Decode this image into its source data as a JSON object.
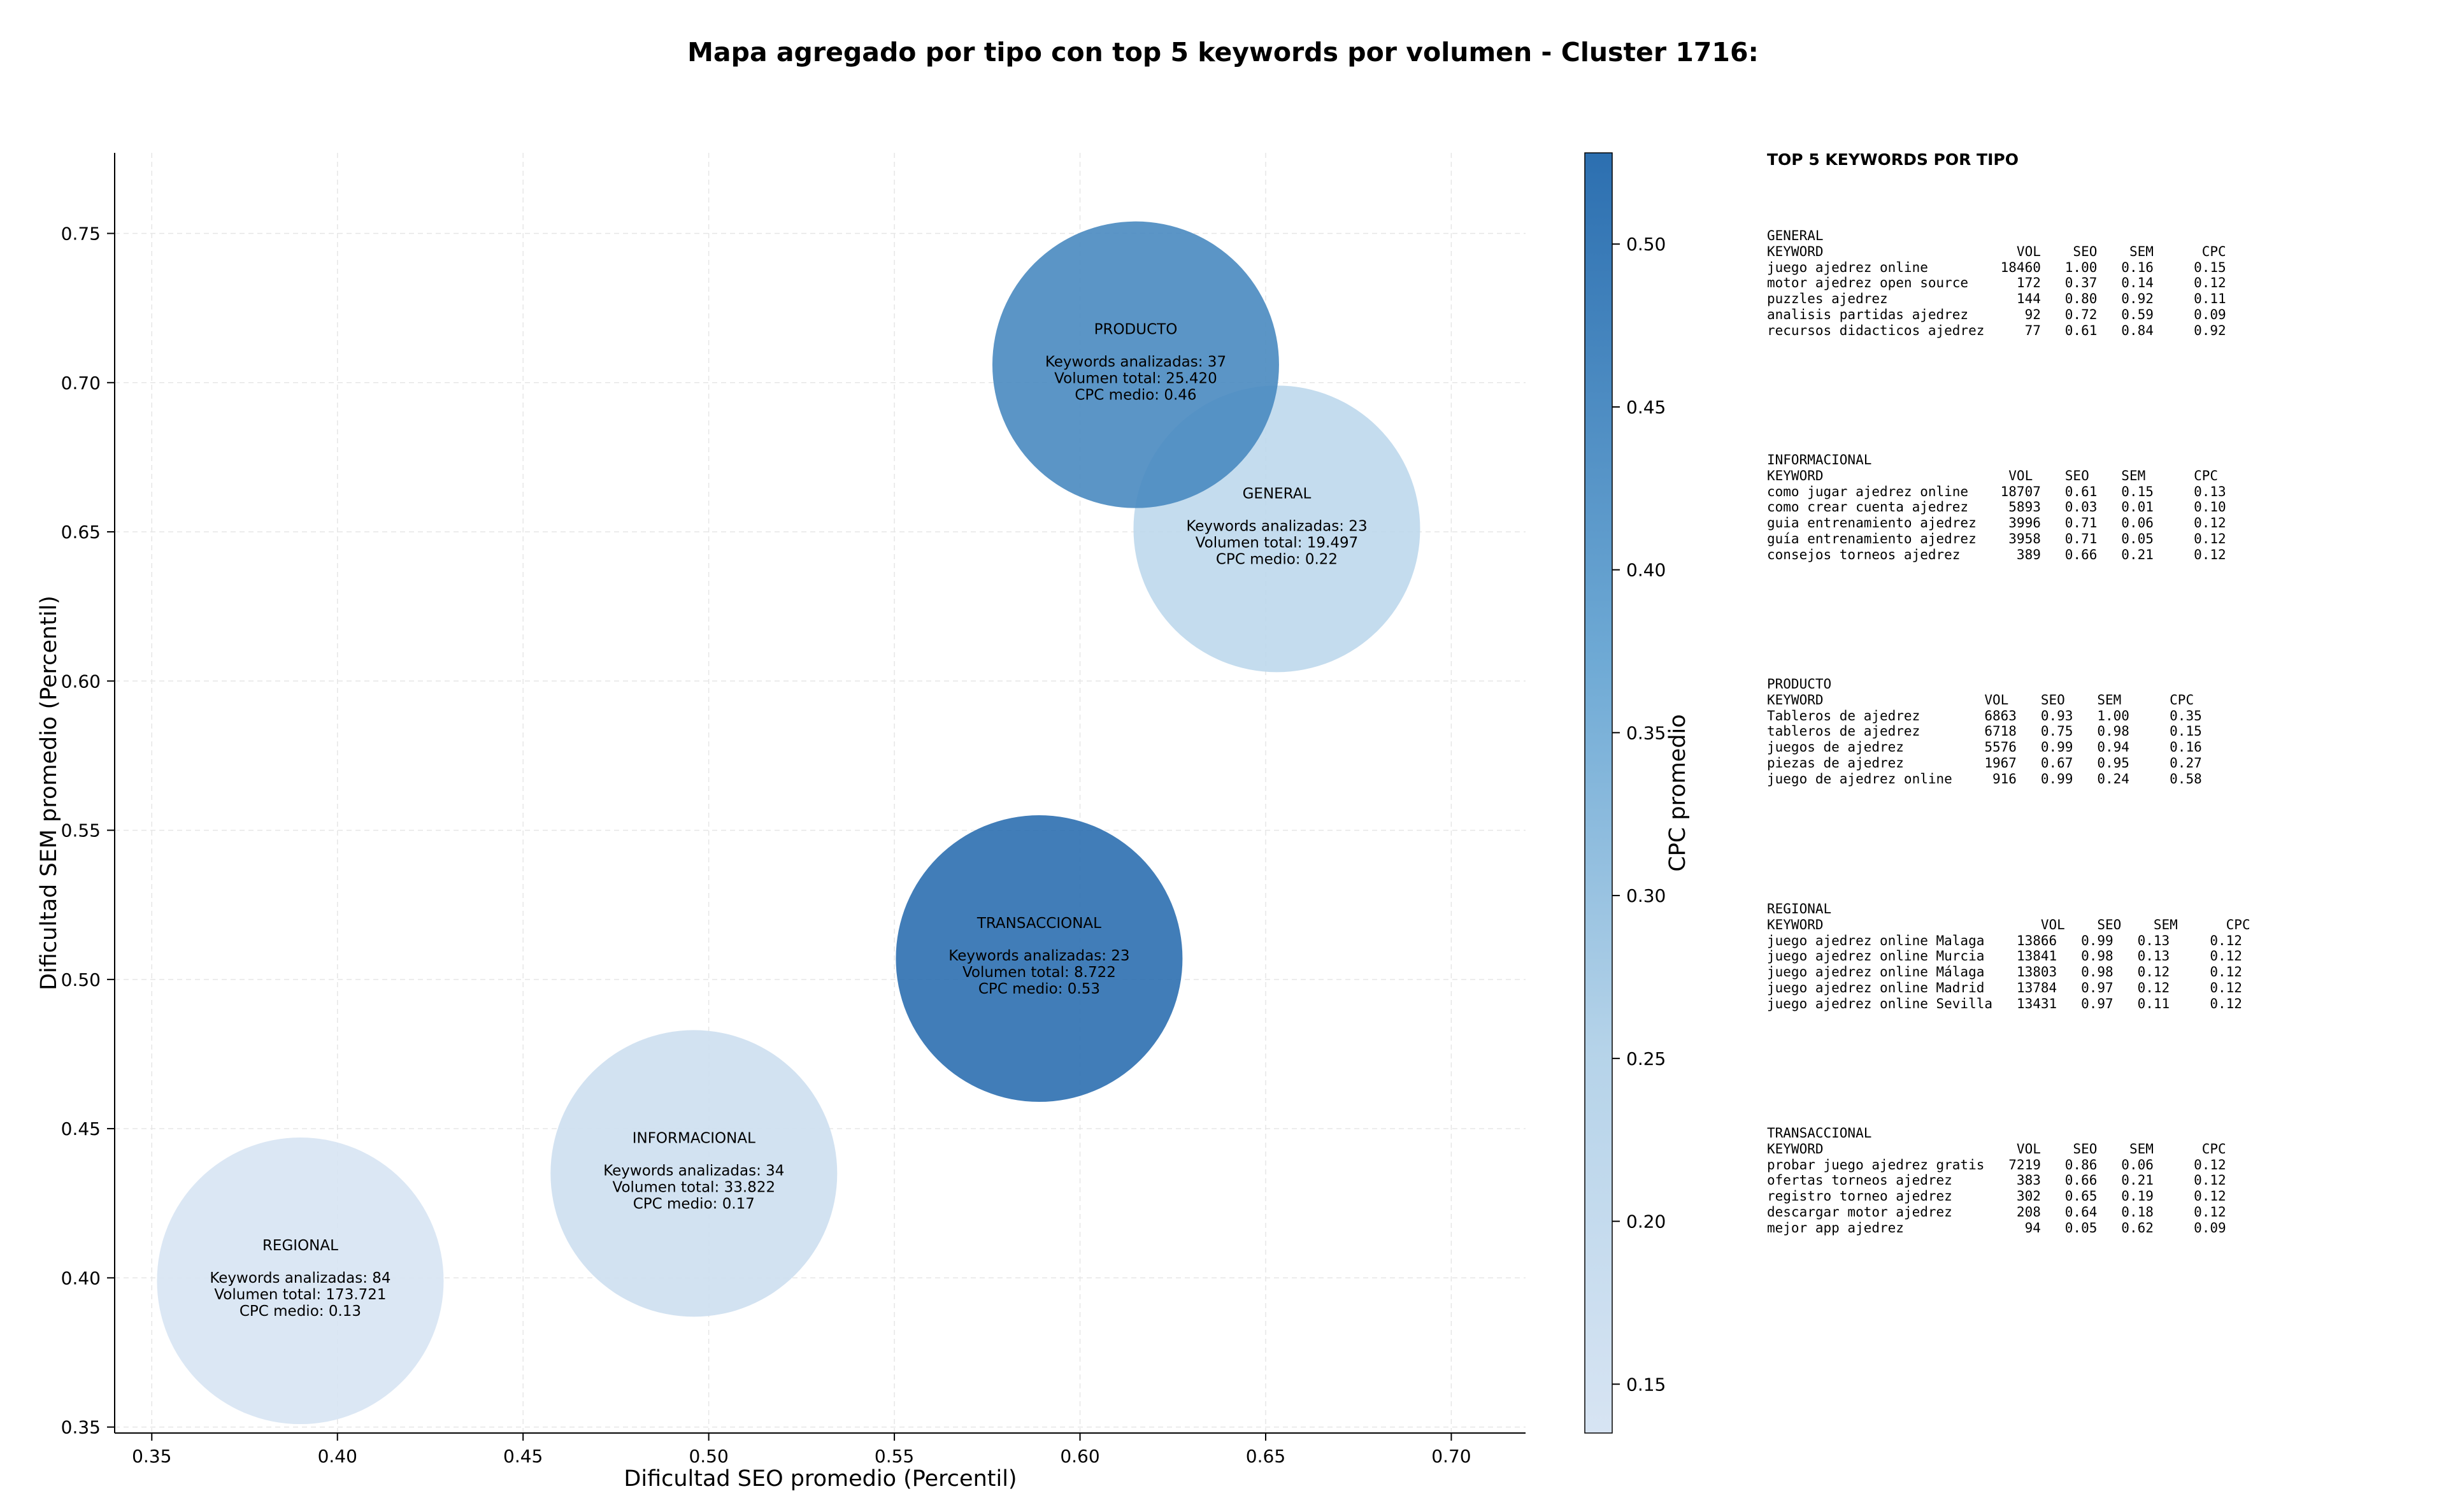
{
  "chart_data": {
    "type": "scatter",
    "title": "Mapa agregado por tipo con top 5 keywords por volumen - Cluster 1716:",
    "xlabel": "Dificultad SEO promedio (Percentil)",
    "ylabel": "Dificultad SEM promedio (Percentil)",
    "xlim": [
      0.34,
      0.72
    ],
    "ylim": [
      0.348,
      0.777
    ],
    "xticks": [
      "0.35",
      "0.40",
      "0.45",
      "0.50",
      "0.55",
      "0.60",
      "0.65",
      "0.70"
    ],
    "xtick_values": [
      0.35,
      0.4,
      0.45,
      0.5,
      0.55,
      0.6,
      0.65,
      0.7
    ],
    "yticks": [
      "0.35",
      "0.40",
      "0.45",
      "0.50",
      "0.55",
      "0.60",
      "0.65",
      "0.70",
      "0.75"
    ],
    "ytick_values": [
      0.35,
      0.4,
      0.45,
      0.5,
      0.55,
      0.6,
      0.65,
      0.7,
      0.75
    ],
    "grid": true,
    "colorbar": {
      "label": "CPC promedio",
      "range": [
        0.135,
        0.528
      ],
      "ticks": [
        "0.15",
        "0.20",
        "0.25",
        "0.30",
        "0.35",
        "0.40",
        "0.45",
        "0.50"
      ],
      "tick_values": [
        0.15,
        0.2,
        0.25,
        0.3,
        0.35,
        0.4,
        0.45,
        0.5
      ],
      "color_low": "#cfdeef",
      "color_high": "#2c6fb0"
    },
    "points": [
      {
        "name": "REGIONAL",
        "x": 0.39,
        "y": 0.399,
        "keywords_label": "Keywords analizadas: 84",
        "volume_label": "Volumen total: 173.721",
        "cpc_label": "CPC medio: 0.13",
        "cpc": 0.13
      },
      {
        "name": "INFORMACIONAL",
        "x": 0.496,
        "y": 0.435,
        "keywords_label": "Keywords analizadas: 34",
        "volume_label": "Volumen total: 33.822",
        "cpc_label": "CPC medio: 0.17",
        "cpc": 0.17
      },
      {
        "name": "TRANSACCIONAL",
        "x": 0.589,
        "y": 0.507,
        "keywords_label": "Keywords analizadas: 23",
        "volume_label": "Volumen total: 8.722",
        "cpc_label": "CPC medio: 0.53",
        "cpc": 0.53
      },
      {
        "name": "GENERAL",
        "x": 0.653,
        "y": 0.651,
        "keywords_label": "Keywords analizadas: 23",
        "volume_label": "Volumen total: 19.497",
        "cpc_label": "CPC medio: 0.22",
        "cpc": 0.22
      },
      {
        "name": "PRODUCTO",
        "x": 0.615,
        "y": 0.706,
        "keywords_label": "Keywords analizadas: 37",
        "volume_label": "Volumen total: 25.420",
        "cpc_label": "CPC medio: 0.46",
        "cpc": 0.46
      }
    ]
  },
  "side_panel": {
    "title": "TOP 5 KEYWORDS POR TIPO",
    "blocks": [
      {
        "type": "GENERAL",
        "header": "KEYWORD                        VOL    SEO    SEM      CPC",
        "rows": [
          "juego ajedrez online         18460   1.00   0.16     0.15",
          "motor ajedrez open source      172   0.37   0.14     0.12",
          "puzzles ajedrez                144   0.80   0.92     0.11",
          "analisis partidas ajedrez       92   0.72   0.59     0.09",
          "recursos didacticos ajedrez     77   0.61   0.84     0.92"
        ]
      },
      {
        "type": "INFORMACIONAL",
        "header": "KEYWORD                       VOL    SEO    SEM      CPC",
        "rows": [
          "como jugar ajedrez online    18707   0.61   0.15     0.13",
          "como crear cuenta ajedrez     5893   0.03   0.01     0.10",
          "guia entrenamiento ajedrez    3996   0.71   0.06     0.12",
          "guía entrenamiento ajedrez    3958   0.71   0.05     0.12",
          "consejos torneos ajedrez       389   0.66   0.21     0.12"
        ]
      },
      {
        "type": "PRODUCTO",
        "header": "KEYWORD                    VOL    SEO    SEM      CPC",
        "rows": [
          "Tableros de ajedrez        6863   0.93   1.00     0.35",
          "tableros de ajedrez        6718   0.75   0.98     0.15",
          "juegos de ajedrez          5576   0.99   0.94     0.16",
          "piezas de ajedrez          1967   0.67   0.95     0.27",
          "juego de ajedrez online     916   0.99   0.24     0.58"
        ]
      },
      {
        "type": "REGIONAL",
        "header": "KEYWORD                           VOL    SEO    SEM      CPC",
        "rows": [
          "juego ajedrez online Malaga    13866   0.99   0.13     0.12",
          "juego ajedrez online Murcia    13841   0.98   0.13     0.12",
          "juego ajedrez online Málaga    13803   0.98   0.12     0.12",
          "juego ajedrez online Madrid    13784   0.97   0.12     0.12",
          "juego ajedrez online Sevilla   13431   0.97   0.11     0.12"
        ]
      },
      {
        "type": "TRANSACCIONAL",
        "header": "KEYWORD                        VOL    SEO    SEM      CPC",
        "rows": [
          "probar juego ajedrez gratis   7219   0.86   0.06     0.12",
          "ofertas torneos ajedrez        383   0.66   0.21     0.12",
          "registro torneo ajedrez        302   0.65   0.19     0.12",
          "descargar motor ajedrez        208   0.64   0.18     0.12",
          "mejor app ajedrez               94   0.05   0.62     0.09"
        ]
      }
    ]
  }
}
